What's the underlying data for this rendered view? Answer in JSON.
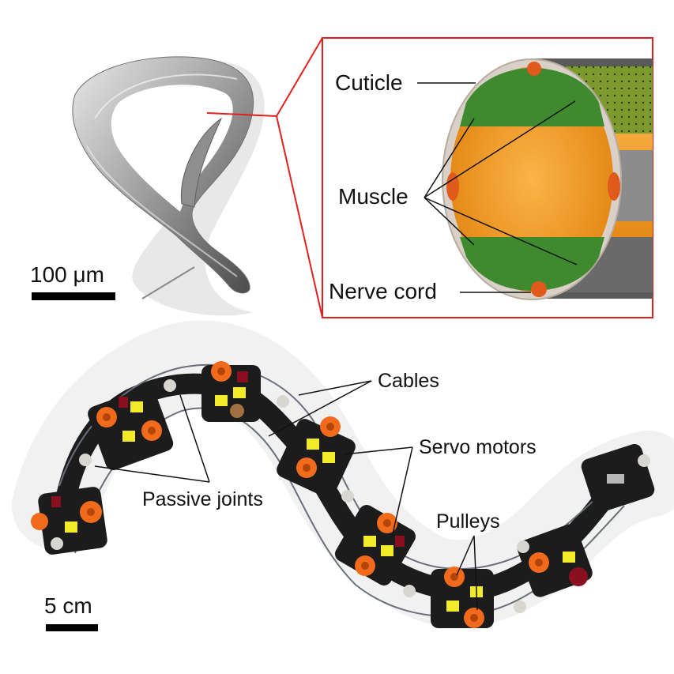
{
  "worm_panel": {
    "scale_label": "100 μm"
  },
  "cross_section": {
    "labels": {
      "cuticle": "Cuticle",
      "muscle": "Muscle",
      "nerve_cord": "Nerve cord"
    },
    "colors": {
      "frame": "#e0211d",
      "cuticle": "#d9d0c8",
      "muscle": "#3f8a2e",
      "interior": "#f2a02c",
      "nerve": "#e05a1c"
    }
  },
  "robot_panel": {
    "labels": {
      "cables": "Cables",
      "servo_motors": "Servo motors",
      "passive_joints": "Passive joints",
      "pulleys": "Pulleys"
    },
    "scale_label": "5 cm",
    "colors": {
      "module_body": "#1c1c1c",
      "pulley": "#f26a1b",
      "tag": "#f3ea2a",
      "servo": "#8a1020",
      "joint_ball": "#d8d6d0"
    }
  }
}
